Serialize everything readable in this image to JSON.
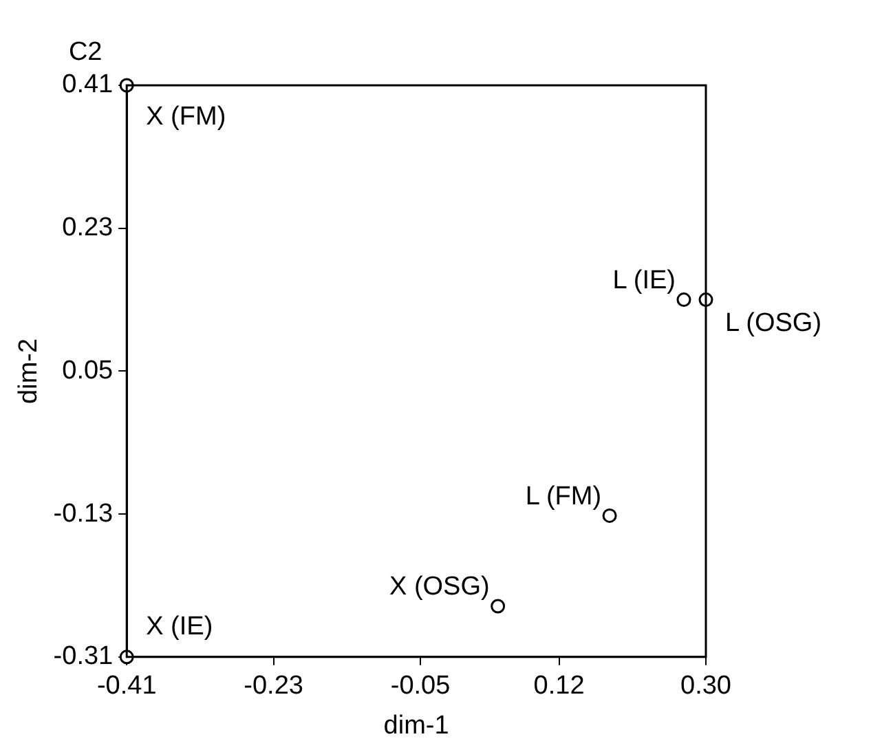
{
  "chart_data": {
    "type": "scatter",
    "title": "C2",
    "xlabel": "dim-1",
    "ylabel": "dim-2",
    "x": [
      -0.41,
      -0.41,
      0.273,
      0.3,
      0.182,
      0.045
    ],
    "values": [
      0.41,
      -0.31,
      0.14,
      0.14,
      -0.132,
      -0.246
    ],
    "color": "#000000",
    "marker": "circle",
    "grid": false,
    "legend": false,
    "xlim": [
      -0.41,
      0.3
    ],
    "xticks": [
      {
        "value": -0.41,
        "label": "-0.41"
      },
      {
        "value": -0.23,
        "label": "-0.23"
      },
      {
        "value": -0.05,
        "label": "-0.05"
      },
      {
        "value": 0.12,
        "label": "0.12"
      },
      {
        "value": 0.3,
        "label": "0.30"
      }
    ],
    "ylim": [
      -0.31,
      0.41
    ],
    "yticks": [
      {
        "value": -0.31,
        "label": "-0.31"
      },
      {
        "value": -0.13,
        "label": "-0.13"
      },
      {
        "value": 0.05,
        "label": "0.05"
      },
      {
        "value": 0.23,
        "label": "0.23"
      },
      {
        "value": 0.41,
        "label": "0.41"
      }
    ],
    "annotations": [
      {
        "text": "X (FM)",
        "x": -0.41,
        "y": 0.41
      },
      {
        "text": "X (IE)",
        "x": -0.41,
        "y": -0.31
      },
      {
        "text": "L (IE)",
        "x": 0.273,
        "y": 0.14
      },
      {
        "text": "L (OSG)",
        "x": 0.3,
        "y": 0.14
      },
      {
        "text": "L (FM)",
        "x": 0.182,
        "y": -0.132
      },
      {
        "text": "X (OSG)",
        "x": 0.045,
        "y": -0.246
      }
    ]
  }
}
